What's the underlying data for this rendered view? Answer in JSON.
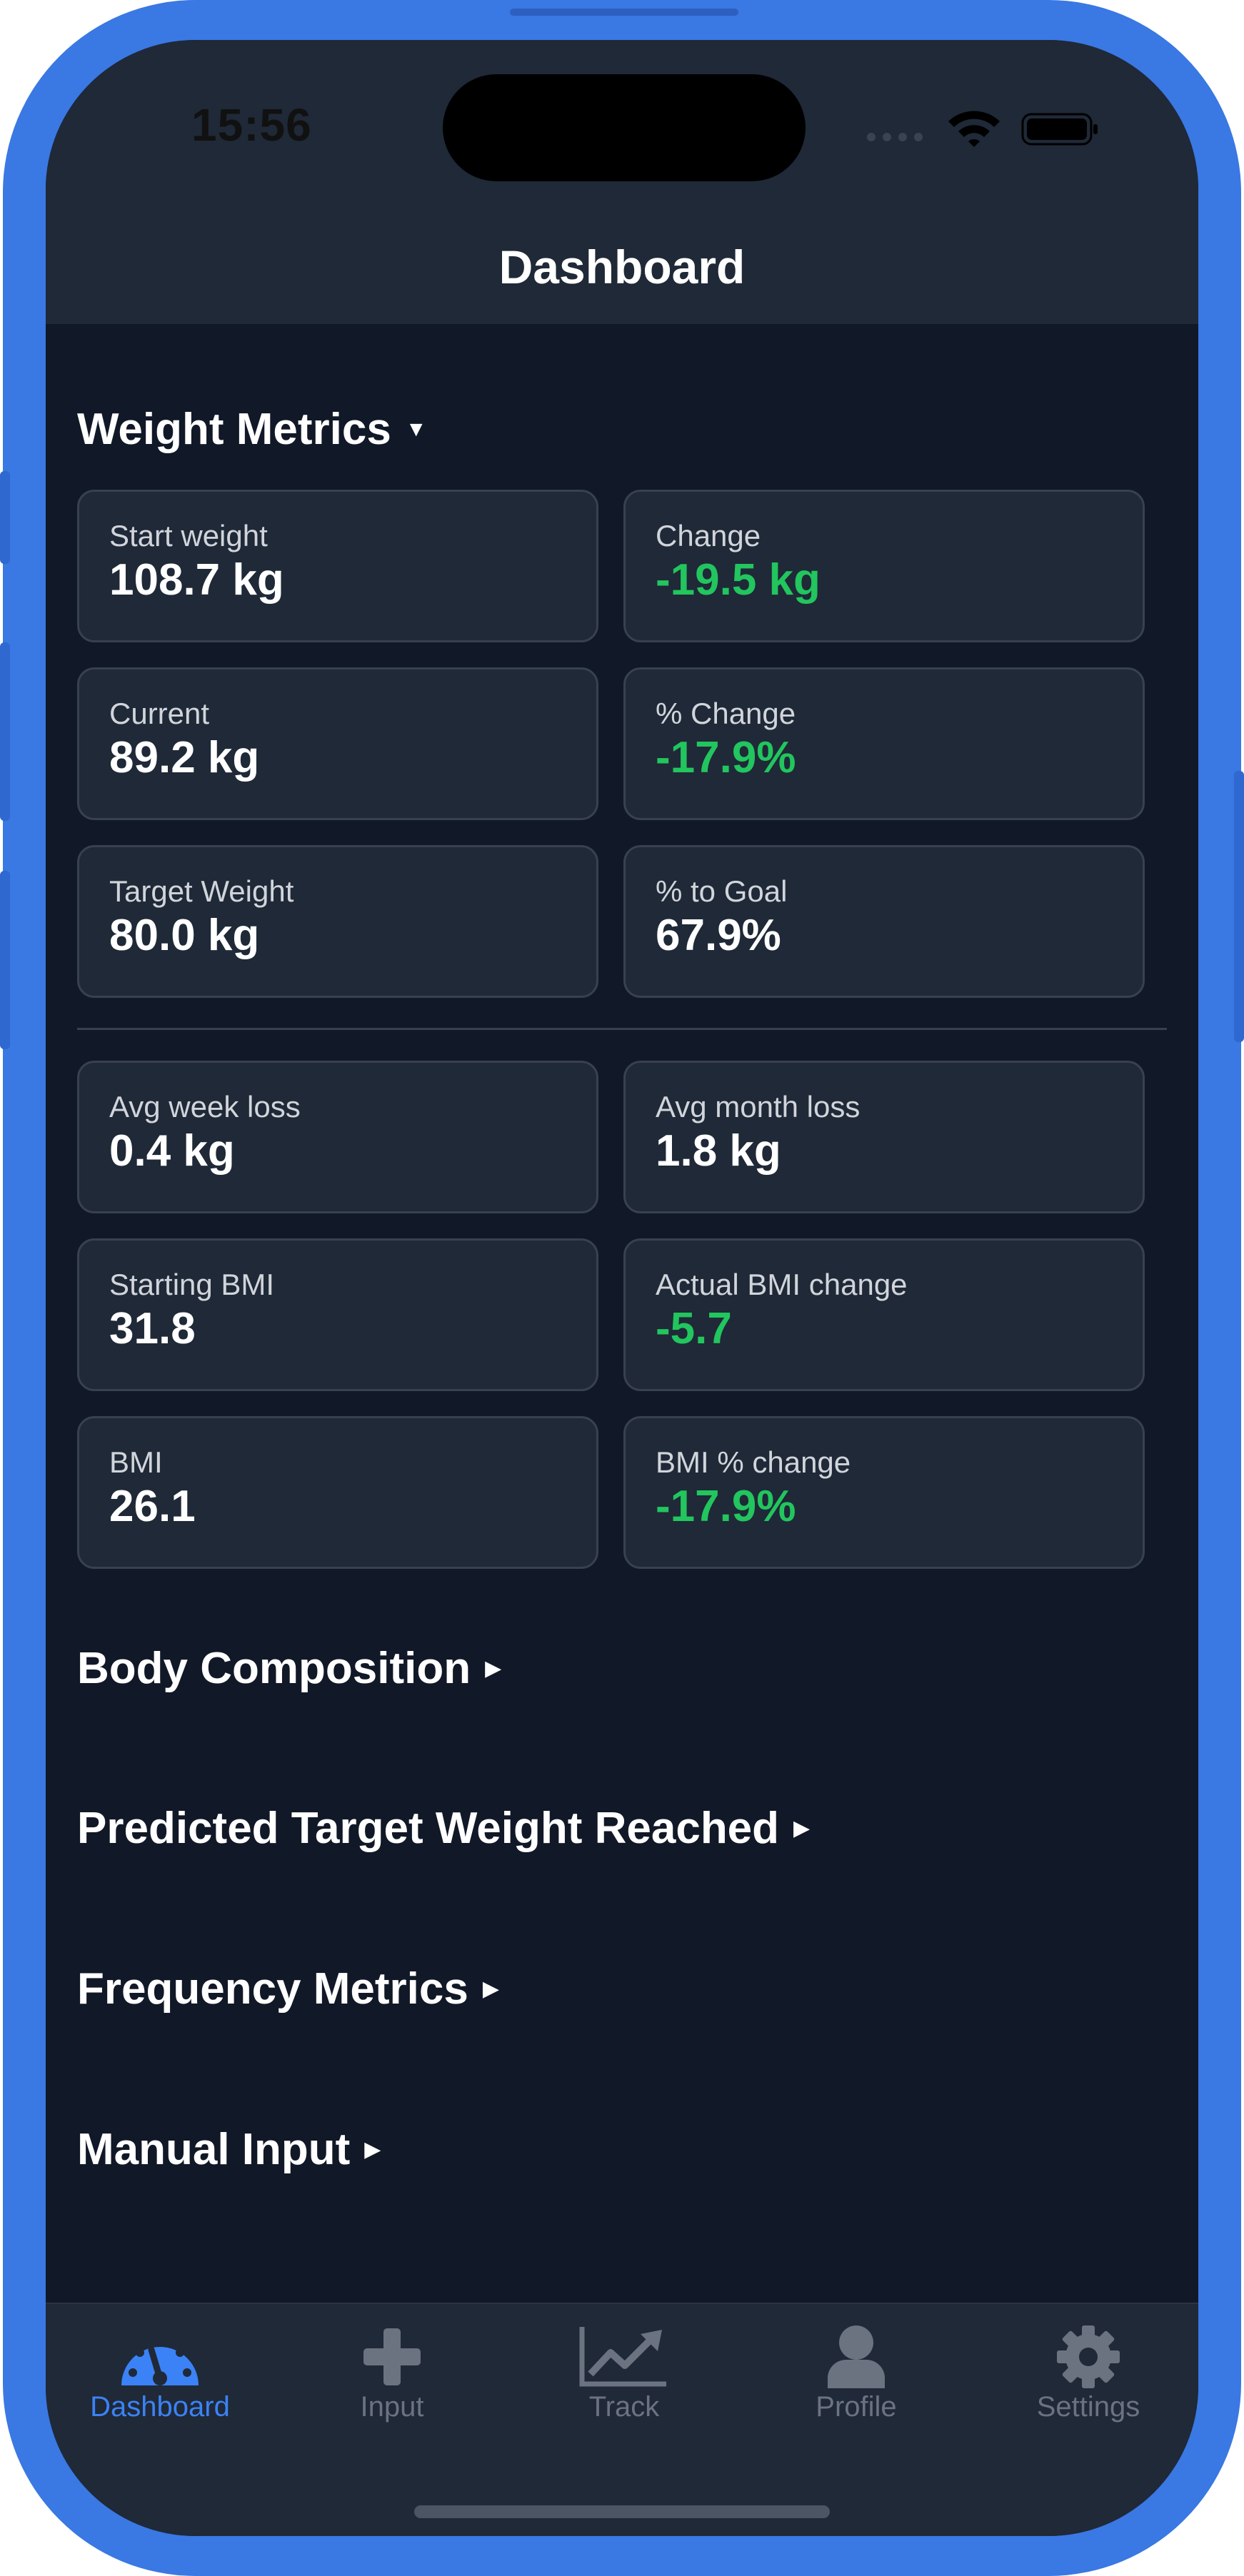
{
  "status_bar": {
    "time": "15:56",
    "icons": [
      "signal-icon",
      "wifi-icon",
      "battery-icon"
    ]
  },
  "nav": {
    "title": "Dashboard"
  },
  "sections": {
    "weight_metrics": {
      "title": "Weight Metrics",
      "caret": "▼",
      "expanded": true
    },
    "body_composition": {
      "title": "Body Composition",
      "caret": "▶",
      "expanded": false
    },
    "predicted_target": {
      "title": "Predicted Target Weight Reached",
      "caret": "▶",
      "expanded": false
    },
    "frequency_metrics": {
      "title": "Frequency Metrics",
      "caret": "▶",
      "expanded": false
    },
    "manual_input": {
      "title": "Manual Input",
      "caret": "▶",
      "expanded": false
    }
  },
  "cards": [
    {
      "label": "Start weight",
      "value": "108.7 kg"
    },
    {
      "label": "Change",
      "value": "-19.5 kg"
    },
    {
      "label": "Current",
      "value": "89.2 kg"
    },
    {
      "label": "% Change",
      "value": "-17.9%"
    },
    {
      "label": "Target Weight",
      "value": "80.0 kg"
    },
    {
      "label": "% to Goal",
      "value": "67.9%"
    },
    {
      "label": "Avg week loss",
      "value": "0.4 kg"
    },
    {
      "label": "Avg month loss",
      "value": "1.8 kg"
    },
    {
      "label": "Starting BMI",
      "value": "31.8"
    },
    {
      "label": "Actual BMI change",
      "value": "-5.7"
    },
    {
      "label": "BMI",
      "value": "26.1"
    },
    {
      "label": "BMI % change",
      "value": "-17.9%"
    }
  ],
  "colors": {
    "accent": "#3b82f6",
    "positive": "#22c55e",
    "background": "#111827",
    "card": "#1f2937",
    "frame": "#3a78e3"
  },
  "tabs": [
    {
      "label": "Dashboard",
      "icon": "gauge-icon",
      "active": true
    },
    {
      "label": "Input",
      "icon": "plus-icon",
      "active": false
    },
    {
      "label": "Track",
      "icon": "chart-line-icon",
      "active": false
    },
    {
      "label": "Profile",
      "icon": "person-icon",
      "active": false
    },
    {
      "label": "Settings",
      "icon": "gear-icon",
      "active": false
    }
  ]
}
